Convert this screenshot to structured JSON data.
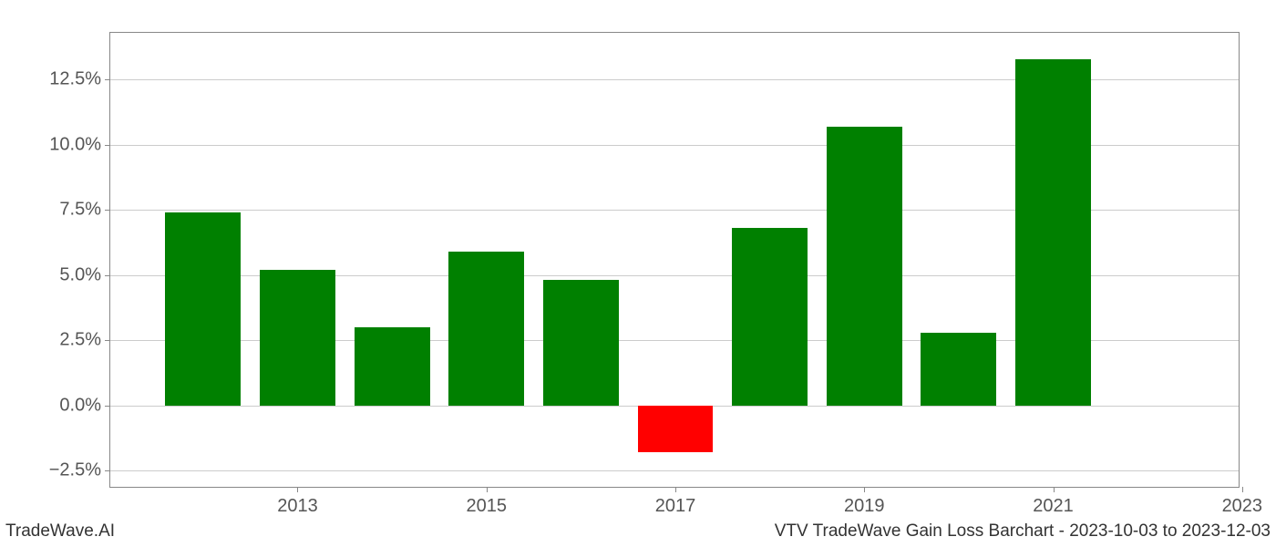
{
  "chart": {
    "type": "bar",
    "categories": [
      "2012",
      "2013",
      "2014",
      "2015",
      "2016",
      "2017",
      "2018",
      "2019",
      "2020",
      "2021",
      "2022"
    ],
    "values": [
      7.4,
      5.2,
      3.0,
      5.9,
      4.8,
      -1.8,
      6.8,
      10.7,
      2.8,
      13.3,
      null
    ],
    "bar_colors": [
      "#008000",
      "#008000",
      "#008000",
      "#008000",
      "#008000",
      "#ff0000",
      "#008000",
      "#008000",
      "#008000",
      "#008000",
      "#ffffff"
    ],
    "y_ticks": [
      -2.5,
      0.0,
      2.5,
      5.0,
      7.5,
      10.0,
      12.5
    ],
    "y_tick_labels": [
      "−2.5%",
      "0.0%",
      "2.5%",
      "5.0%",
      "7.5%",
      "10.0%",
      "12.5%"
    ],
    "x_ticks_shown": [
      "2013",
      "2015",
      "2017",
      "2019",
      "2021",
      "2023"
    ],
    "ylim": [
      -3.2,
      14.3
    ],
    "bar_width": 0.8,
    "background_color": "#ffffff",
    "grid_color": "#cccccc",
    "border_color": "#888888",
    "tick_fontsize": 20,
    "tick_color": "#555555"
  },
  "footer": {
    "left": "TradeWave.AI",
    "right": "VTV TradeWave Gain Loss Barchart - 2023-10-03 to 2023-12-03",
    "fontsize": 19,
    "color": "#333333"
  }
}
